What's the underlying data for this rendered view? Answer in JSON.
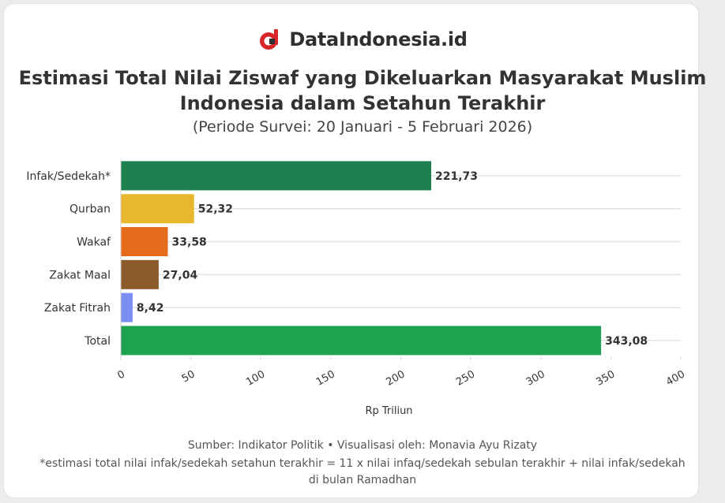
{
  "brand": {
    "name": "DataIndonesia.id",
    "logo_color": "#d9262b"
  },
  "header": {
    "title_line1": "Estimasi Total Nilai Ziswaf yang Dikeluarkan Masyarakat Muslim",
    "title_line2": "Indonesia dalam Setahun Terakhir",
    "subtitle": "(Periode Survei: 20 Januari - 5 Februari 2026)"
  },
  "chart_data": {
    "type": "bar",
    "orientation": "horizontal",
    "categories": [
      "Infak/Sedekah*",
      "Qurban",
      "Wakaf",
      "Zakat Maal",
      "Zakat Fitrah",
      "Total"
    ],
    "values": [
      221.73,
      52.32,
      33.58,
      27.04,
      8.42,
      343.08
    ],
    "value_labels": [
      "221,73",
      "52,32",
      "33,58",
      "27,04",
      "8,42",
      "343,08"
    ],
    "colors": [
      "#1e7f4f",
      "#e8b72b",
      "#e56a1b",
      "#8a5a2b",
      "#7b8ff2",
      "#1fa24f"
    ],
    "xlabel": "Rp Triliun",
    "ylabel": "",
    "xlim": [
      0,
      400
    ],
    "xticks": [
      "0",
      "50",
      "100",
      "150",
      "200",
      "250",
      "300",
      "350",
      "400"
    ],
    "grid": true
  },
  "footer": {
    "source": "Sumber: Indikator Politik • Visualisasi oleh: Monavia Ayu Rizaty",
    "note_line1": "*estimasi total nilai infak/sedekah setahun terakhir = 11 x nilai infaq/sedekah sebulan terakhir + nilai infak/sedekah",
    "note_line2": "di bulan Ramadhan"
  }
}
